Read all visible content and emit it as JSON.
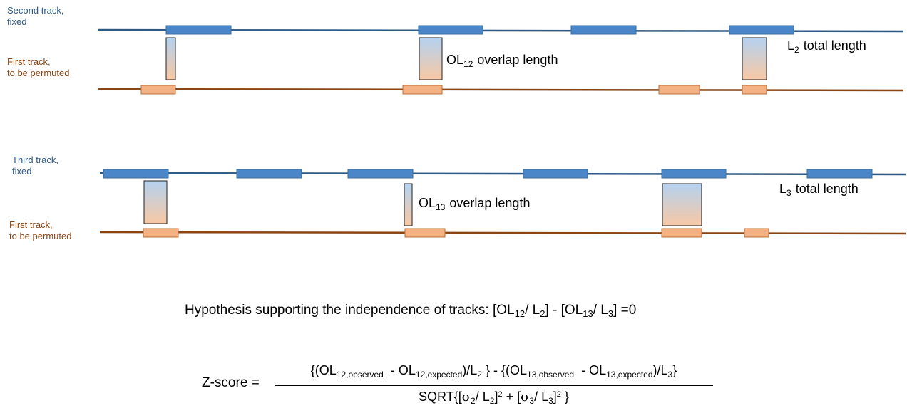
{
  "labels": {
    "second_track": [
      "Second track,",
      "fixed"
    ],
    "first_track": [
      "First track,",
      "to be permuted"
    ],
    "third_track": [
      "Third track,",
      "fixed"
    ]
  },
  "annotations": {
    "ol12": {
      "base": "OL",
      "sub": "12",
      "text": "overlap length"
    },
    "l2": {
      "base": "L",
      "sub": "2",
      "text": "total length"
    },
    "ol13": {
      "base": "OL",
      "sub": "13",
      "text": "overlap length"
    },
    "l3": {
      "base": "L",
      "sub": "3",
      "text": "total length"
    }
  },
  "hypothesis": {
    "prefix": "Hypothesis supporting the independence of tracks: [OL",
    "sub1": "12",
    "mid1": "/ L",
    "sub2": "2",
    "mid2": "] - [OL",
    "sub3": "13",
    "mid3": "/ L",
    "sub4": "3",
    "suffix": "] =0"
  },
  "zscore": {
    "label": "Z-score =",
    "num": {
      "p1": "{(OL",
      "s1": "12,observed",
      "p2": "- OL",
      "s2": "12,expected",
      "p3": ")/L",
      "s3": "2",
      "p4": "} - {(OL",
      "s4": "13,observed",
      "p5": "- OL",
      "s5": "13,expected",
      "p6": ")/L",
      "s6": "3",
      "p7": "}"
    },
    "den": {
      "p1": "SQRT{[",
      "sigma": "σ",
      "s1": "2",
      "p2": "/ L",
      "s2": "2",
      "p3": "]",
      "sup1": "2",
      "p4": " + [",
      "s3": "3",
      "p5": "/ L",
      "s4": "3",
      "p6": "]",
      "sup2": "2",
      "p7": " }"
    }
  },
  "colors": {
    "blue_track": "#2e5a86",
    "blue_segment": "#4a86c8",
    "brown_track": "#8b4513",
    "orange_segment": "#f4b183",
    "overlap_top": "#b4d2f0",
    "overlap_bottom": "#f8c8a4"
  }
}
